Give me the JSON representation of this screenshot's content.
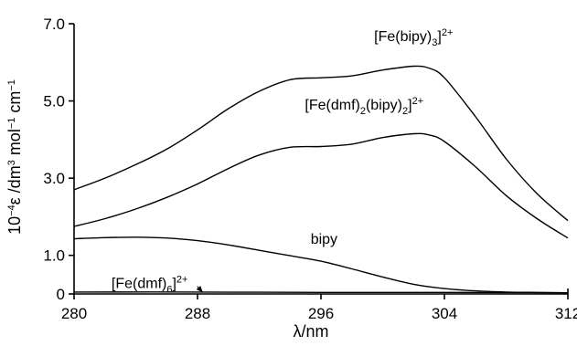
{
  "chart_data": {
    "type": "line",
    "xlabel": "λ/nm",
    "ylabel": "10−4ε /dm3 mol−1 cm−1",
    "xlim": [
      280,
      312
    ],
    "ylim": [
      0,
      7.0
    ],
    "x_ticks": [
      280,
      288,
      296,
      304,
      312
    ],
    "x_tick_labels": [
      "280",
      "288",
      "296",
      "304",
      "312"
    ],
    "y_ticks": [
      0,
      1.0,
      3.0,
      5.0,
      7.0
    ],
    "y_tick_labels": [
      "0",
      "1.0",
      "3.0",
      "5.0",
      "7.0"
    ],
    "grid": false,
    "series": [
      {
        "name": "[Fe(bipy)3]2+",
        "x": [
          280,
          282,
          284,
          286,
          288,
          290,
          292,
          294,
          296,
          298,
          300,
          302,
          303,
          304,
          306,
          308,
          310,
          312
        ],
        "y": [
          2.7,
          3.0,
          3.35,
          3.75,
          4.25,
          4.8,
          5.25,
          5.55,
          5.6,
          5.65,
          5.8,
          5.9,
          5.85,
          5.6,
          4.6,
          3.5,
          2.6,
          1.9
        ]
      },
      {
        "name": "[Fe(dmf)2(bipy)2]2+",
        "x": [
          280,
          282,
          284,
          286,
          288,
          290,
          292,
          294,
          296,
          298,
          300,
          302,
          303,
          304,
          306,
          308,
          310,
          312
        ],
        "y": [
          1.75,
          1.95,
          2.2,
          2.5,
          2.85,
          3.25,
          3.6,
          3.8,
          3.82,
          3.88,
          4.05,
          4.15,
          4.12,
          3.95,
          3.3,
          2.55,
          1.95,
          1.45
        ]
      },
      {
        "name": "bipy",
        "x": [
          280,
          282,
          284,
          286,
          288,
          290,
          292,
          294,
          296,
          298,
          300,
          302,
          304,
          306,
          308,
          310,
          312
        ],
        "y": [
          1.43,
          1.46,
          1.47,
          1.45,
          1.38,
          1.27,
          1.13,
          0.99,
          0.85,
          0.65,
          0.44,
          0.25,
          0.14,
          0.08,
          0.05,
          0.04,
          0.03
        ]
      },
      {
        "name": "[Fe(dmf)6]2+",
        "x": [
          280,
          288,
          296,
          304,
          312
        ],
        "y": [
          0.05,
          0.05,
          0.04,
          0.04,
          0.03
        ]
      }
    ],
    "annotations": [
      {
        "text": "[Fe(bipy)3]2+",
        "points_to": "[Fe(bipy)3]2+",
        "x": 302,
        "y": 6.55
      },
      {
        "text": "[Fe(dmf)2(bipy)2]2+",
        "points_to": "[Fe(dmf)2(bipy)2]2+",
        "x": 298.8,
        "y": 4.78
      },
      {
        "text": "bipy",
        "points_to": "bipy",
        "x": 296.2,
        "y": 1.3
      },
      {
        "text": "[Fe(dmf)6]2+",
        "points_to": "[Fe(dmf)6]2+",
        "x": 284.9,
        "y": 0.15,
        "arrow_to": [
          288.3,
          0.06
        ]
      }
    ]
  }
}
